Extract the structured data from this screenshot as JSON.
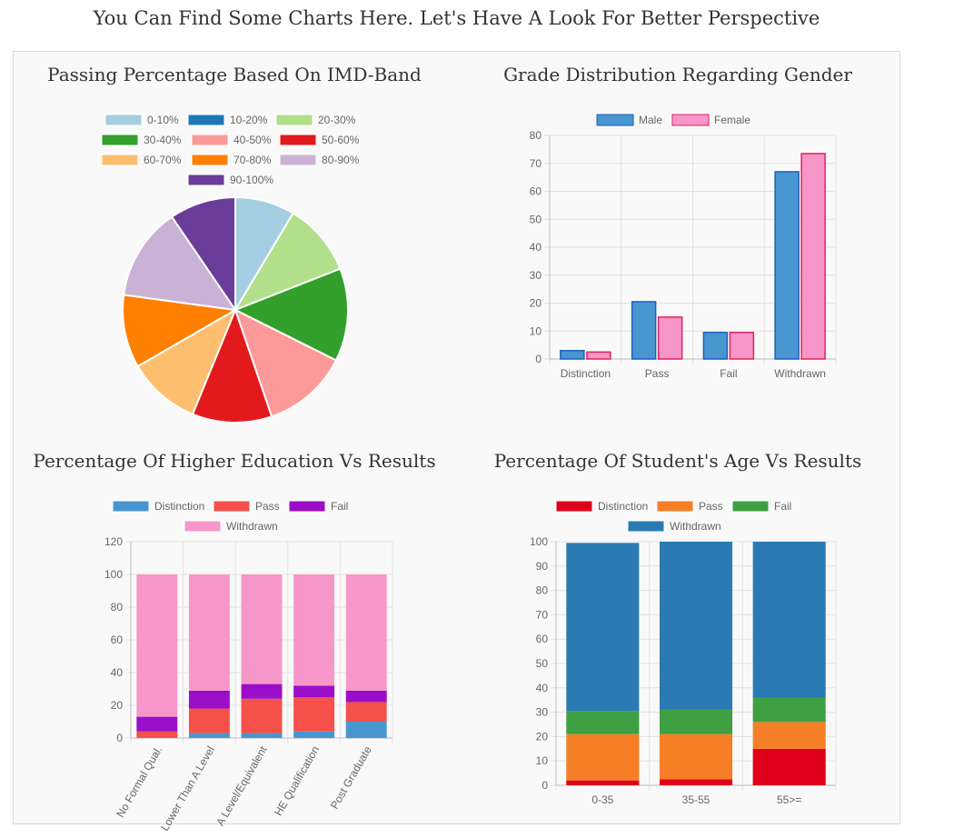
{
  "page": {
    "title": "You Can Find Some Charts Here. Let's Have A Look For Better Perspective"
  },
  "chart_data": [
    {
      "id": "imd",
      "type": "pie",
      "title": "Passing Percentage Based On IMD-Band",
      "categories": [
        "0-10%",
        "10-20%",
        "20-30%",
        "30-40%",
        "40-50%",
        "50-60%",
        "60-70%",
        "70-80%",
        "80-90%",
        "90-100%"
      ],
      "values": [
        9,
        0,
        11,
        14,
        13,
        12,
        11,
        11,
        14,
        10
      ],
      "colors": [
        "#a6cee3",
        "#1f78b4",
        "#b2df8a",
        "#33a02c",
        "#fb9a99",
        "#e31a1c",
        "#fdbf6f",
        "#ff7f00",
        "#cab2d6",
        "#6a3d9a"
      ]
    },
    {
      "id": "gender",
      "type": "bar",
      "title": "Grade Distribution Regarding Gender",
      "categories": [
        "Distinction",
        "Pass",
        "Fail",
        "Withdrawn"
      ],
      "series": [
        {
          "name": "Male",
          "values": [
            3,
            20.5,
            9.5,
            67
          ],
          "color": "#4896d0",
          "border": "#1f5fbf"
        },
        {
          "name": "Female",
          "values": [
            2.5,
            15,
            9.5,
            73.5
          ],
          "color": "#f796c9",
          "border": "#e0245a"
        }
      ],
      "ylim": [
        0,
        80
      ],
      "yticks": [
        0,
        10,
        20,
        30,
        40,
        50,
        60,
        70,
        80
      ]
    },
    {
      "id": "education",
      "type": "bar",
      "stacked": true,
      "title": "Percentage Of Higher Education Vs Results",
      "categories": [
        "No Formal Qual.",
        "Lower Than A Level",
        "A Level/Equivalent",
        "HE Qualification",
        "Post Graduate"
      ],
      "series": [
        {
          "name": "Distinction",
          "values": [
            0,
            3,
            3,
            4,
            10
          ],
          "color": "#4896d0"
        },
        {
          "name": "Pass",
          "values": [
            4,
            15,
            21,
            21,
            12
          ],
          "color": "#f5504a"
        },
        {
          "name": "Fail",
          "values": [
            9,
            11,
            9,
            7,
            7
          ],
          "color": "#9b0ec9"
        },
        {
          "name": "Withdrawn",
          "values": [
            87,
            71,
            67,
            68,
            71
          ],
          "color": "#f797c9"
        }
      ],
      "ylim": [
        0,
        120
      ],
      "yticks": [
        0,
        20,
        40,
        60,
        80,
        100,
        120
      ]
    },
    {
      "id": "age",
      "type": "bar",
      "stacked": true,
      "title": "Percentage Of Student's Age Vs Results",
      "categories": [
        "0-35",
        "35-55",
        "55>="
      ],
      "series": [
        {
          "name": "Distinction",
          "values": [
            2,
            2.5,
            15
          ],
          "color": "#e0001b"
        },
        {
          "name": "Pass",
          "values": [
            19,
            18.5,
            11
          ],
          "color": "#f67e26"
        },
        {
          "name": "Fail",
          "values": [
            9.5,
            10,
            10
          ],
          "color": "#3ea043"
        },
        {
          "name": "Withdrawn",
          "values": [
            69,
            69,
            64
          ],
          "color": "#2a7bb3"
        }
      ],
      "ylim": [
        0,
        100
      ],
      "yticks": [
        0,
        10,
        20,
        30,
        40,
        50,
        60,
        70,
        80,
        90,
        100
      ]
    }
  ]
}
